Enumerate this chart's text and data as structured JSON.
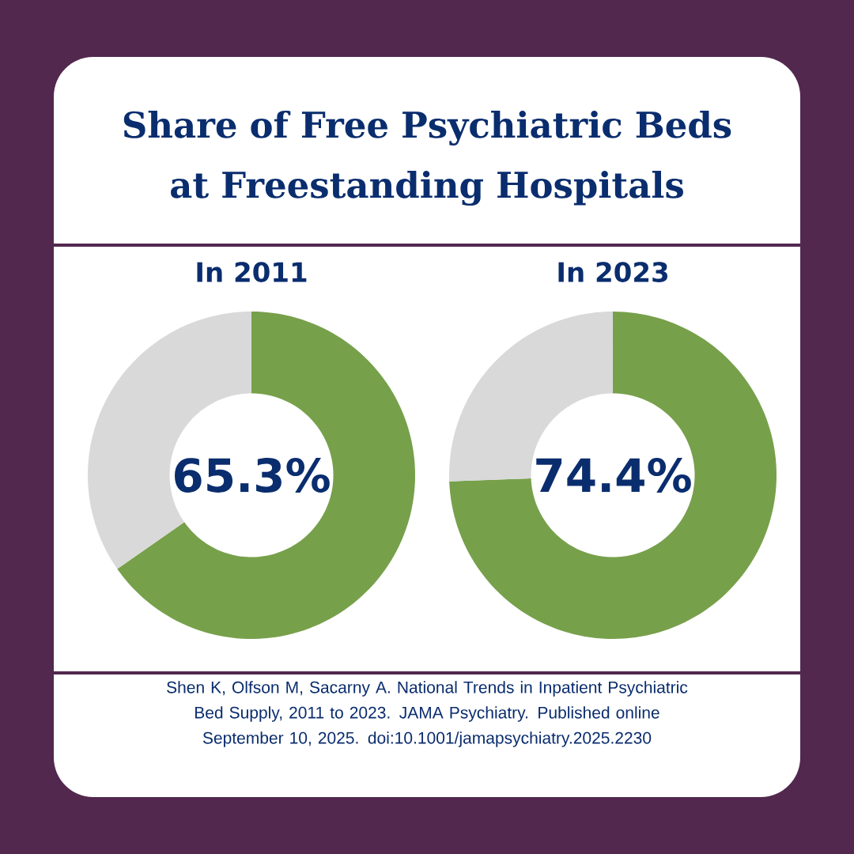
{
  "chart_data": [
    {
      "type": "other",
      "title": "Share of Free Psychiatric Beds at Freestanding Hospitals"
    },
    {
      "type": "donut",
      "title": "In 2011",
      "categories": [
        null,
        null
      ],
      "values": [
        65.3,
        34.7
      ],
      "colors": [
        "#77a04b",
        "#d9d9d9"
      ],
      "value_labels": [
        "65.3%",
        null
      ]
    },
    {
      "type": "donut",
      "title": "In 2023",
      "categories": [
        null,
        null
      ],
      "values": [
        74.4,
        25.6
      ],
      "colors": [
        "#77a04b",
        "#d9d9d9"
      ],
      "value_labels": [
        "74.4%",
        null
      ]
    },
    {
      "type": "other",
      "annotations": [
        "Shen K, Olfson M, Sacarny A. National Trends in Inpatient Psychiatric Bed Supply, 2011 to 2023. JAMA Psychiatry. Published online September 10, 2025. doi:10.1001/jamapsychiatry.2025.2230"
      ]
    }
  ]
}
